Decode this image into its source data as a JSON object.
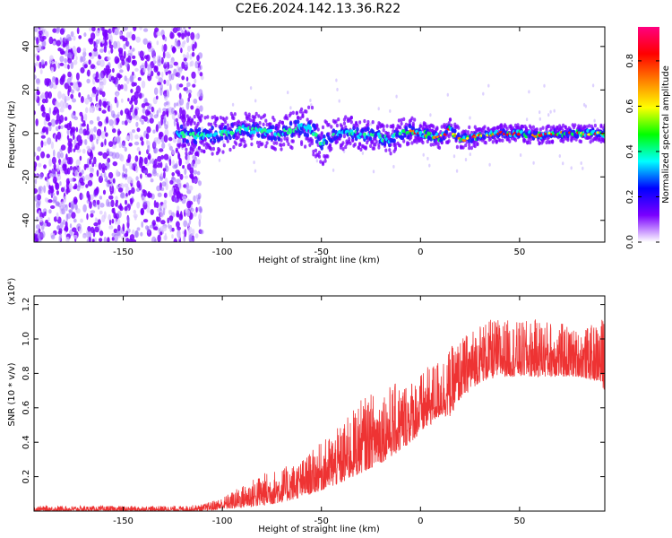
{
  "title": "C2E6.2024.142.13.36.R22",
  "chart_data": [
    {
      "type": "heatmap",
      "xlabel": "Height of straight line (km)",
      "ylabel": "Frequency (Hz)",
      "xlim": [
        -195,
        93
      ],
      "ylim": [
        -50,
        49
      ],
      "x_ticks": [
        -150,
        -100,
        -50,
        0,
        50
      ],
      "y_ticks": [
        -40,
        -20,
        0,
        20,
        40
      ],
      "grid": false,
      "colorbar": {
        "label": "Normalized spectral amplitude",
        "range": [
          0.0,
          0.95
        ],
        "ticks": [
          "0.0",
          "0.2",
          "0.4",
          "0.6",
          "0.8"
        ],
        "colormap": [
          "#ffffff",
          "#7a00ff",
          "#0000ff",
          "#00ffff",
          "#00ff00",
          "#ffff00",
          "#ff8000",
          "#ff0000",
          "#ff0080"
        ]
      },
      "noise_region_x": [
        -195,
        -110
      ],
      "noise_freq_range": [
        -50,
        49
      ],
      "signal_band": {
        "x_start": -123,
        "x": [
          -123,
          -110,
          -100,
          -90,
          -80,
          -70,
          -60,
          -55,
          -52,
          -50,
          -45,
          -40,
          -35,
          -30,
          -25,
          -20,
          -15,
          -10,
          -5,
          0,
          5,
          10,
          15,
          20,
          25,
          30,
          40,
          50,
          60,
          70,
          80,
          93
        ],
        "center_hz": [
          0,
          -1,
          0,
          2,
          1,
          0,
          3,
          2,
          -2,
          -5,
          -2,
          0,
          1,
          -1,
          0,
          -2,
          -3,
          0,
          1,
          0,
          -1,
          -2,
          2,
          -3,
          -2,
          -1,
          0,
          0,
          -1,
          0,
          0,
          0
        ],
        "half_width_hz": [
          7,
          7,
          7,
          6,
          6,
          6,
          7,
          8,
          8,
          8,
          6,
          6,
          5,
          5,
          5,
          5,
          5,
          5,
          5,
          4,
          4,
          4,
          4,
          4,
          4,
          3,
          3,
          3,
          3,
          3,
          3,
          3
        ]
      }
    },
    {
      "type": "line",
      "xlabel": "Height of straight line (km)",
      "ylabel": "SNR (10 * v/v)",
      "y_multiplier": "(x10⁴)",
      "y_unit_scale": 10000,
      "xlim": [
        -195,
        93
      ],
      "ylim": [
        0,
        1.25
      ],
      "x_ticks": [
        -150,
        -100,
        -50,
        0,
        50
      ],
      "y_ticks": [
        0.2,
        0.4,
        0.6,
        0.8,
        1.0,
        1.2
      ],
      "grid": false,
      "color": "#ee3333",
      "envelope": {
        "x": [
          -195,
          -120,
          -110,
          -100,
          -90,
          -80,
          -70,
          -60,
          -50,
          -40,
          -30,
          -20,
          -10,
          0,
          10,
          15,
          20,
          30,
          40,
          50,
          60,
          70,
          80,
          90,
          93
        ],
        "lower": [
          0.0,
          0.0,
          0.0,
          0.01,
          0.02,
          0.03,
          0.05,
          0.08,
          0.12,
          0.16,
          0.22,
          0.28,
          0.35,
          0.45,
          0.55,
          0.55,
          0.65,
          0.75,
          0.78,
          0.78,
          0.78,
          0.78,
          0.78,
          0.75,
          0.7
        ],
        "upper": [
          0.03,
          0.03,
          0.04,
          0.08,
          0.15,
          0.22,
          0.25,
          0.3,
          0.4,
          0.5,
          0.65,
          0.72,
          0.75,
          0.8,
          0.9,
          0.95,
          1.0,
          1.1,
          1.12,
          1.1,
          1.12,
          1.1,
          1.05,
          1.1,
          1.15
        ]
      }
    }
  ]
}
